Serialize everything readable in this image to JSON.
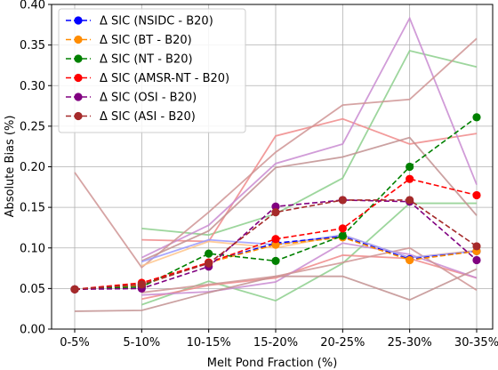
{
  "chart_data": {
    "type": "line",
    "title": "",
    "xlabel": "Melt Pond Fraction (%)",
    "ylabel": "Absolute Bias (%)",
    "categories": [
      "0-5%",
      "5-10%",
      "10-15%",
      "15-20%",
      "20-25%",
      "25-30%",
      "30-35%"
    ],
    "ylim": [
      0.0,
      0.4
    ],
    "yticks": [
      "0.00",
      "0.05",
      "0.10",
      "0.15",
      "0.20",
      "0.25",
      "0.30",
      "0.35",
      "0.40"
    ],
    "grid": true,
    "legend_position": "top-left",
    "series": [
      {
        "name": "Δ SIC (NSIDC - B20)",
        "color": "#0000ff",
        "values": [
          0.049,
          0.054,
          0.082,
          0.106,
          0.114,
          0.086,
          0.096
        ]
      },
      {
        "name": "Δ SIC (BT - B20)",
        "color": "#ff8c00",
        "values": [
          0.049,
          0.054,
          0.082,
          0.104,
          0.113,
          0.085,
          0.096
        ]
      },
      {
        "name": "Δ SIC (NT - B20)",
        "color": "#008000",
        "values": [
          0.049,
          0.052,
          0.093,
          0.084,
          0.115,
          0.2,
          0.261
        ]
      },
      {
        "name": "Δ SIC (AMSR-NT - B20)",
        "color": "#ff0000",
        "values": [
          0.049,
          0.057,
          0.082,
          0.111,
          0.124,
          0.185,
          0.165
        ]
      },
      {
        "name": "Δ SIC (OSI - B20)",
        "color": "#800080",
        "values": [
          0.049,
          0.05,
          0.077,
          0.151,
          0.159,
          0.157,
          0.085
        ]
      },
      {
        "name": "Δ SIC (ASI - B20)",
        "color": "#a52a2a",
        "values": [
          0.049,
          0.055,
          0.081,
          0.144,
          0.159,
          0.159,
          0.102
        ]
      }
    ],
    "background_lines": [
      {
        "color": "#8ccf8c",
        "values": [
          null,
          0.124,
          0.116,
          0.142,
          0.186,
          0.343,
          0.323
        ]
      },
      {
        "color": "#8ccf8c",
        "values": [
          null,
          0.03,
          0.059,
          0.035,
          0.081,
          0.155,
          0.155
        ]
      },
      {
        "color": "#f08a8a",
        "values": [
          null,
          0.11,
          0.108,
          0.238,
          0.259,
          0.228,
          0.241
        ]
      },
      {
        "color": "#f08a8a",
        "values": [
          null,
          0.037,
          0.054,
          0.063,
          0.091,
          0.087,
          0.063
        ]
      },
      {
        "color": "#c98bd1",
        "values": [
          null,
          0.088,
          0.128,
          0.204,
          0.228,
          0.383,
          0.178
        ]
      },
      {
        "color": "#c98bd1",
        "values": [
          null,
          0.042,
          0.046,
          0.058,
          0.106,
          0.092,
          0.063
        ]
      },
      {
        "color": "#cf9494",
        "values": [
          0.193,
          0.076,
          0.144,
          0.218,
          0.276,
          0.283,
          0.358
        ]
      },
      {
        "color": "#c29090",
        "values": [
          null,
          0.084,
          0.121,
          0.199,
          0.212,
          0.236,
          0.14
        ]
      },
      {
        "color": "#c29090",
        "values": [
          0.022,
          0.023,
          0.045,
          0.065,
          0.065,
          0.036,
          0.074
        ]
      },
      {
        "color": "#cf9494",
        "values": [
          null,
          0.045,
          0.055,
          0.065,
          0.082,
          0.1,
          0.048
        ]
      },
      {
        "color": "#ffc48a",
        "values": [
          null,
          0.078,
          0.108,
          0.1,
          0.116,
          0.088,
          0.097
        ]
      },
      {
        "color": "#9999ff",
        "values": [
          null,
          0.083,
          0.11,
          0.104,
          0.116,
          0.088,
          0.096
        ]
      }
    ]
  }
}
